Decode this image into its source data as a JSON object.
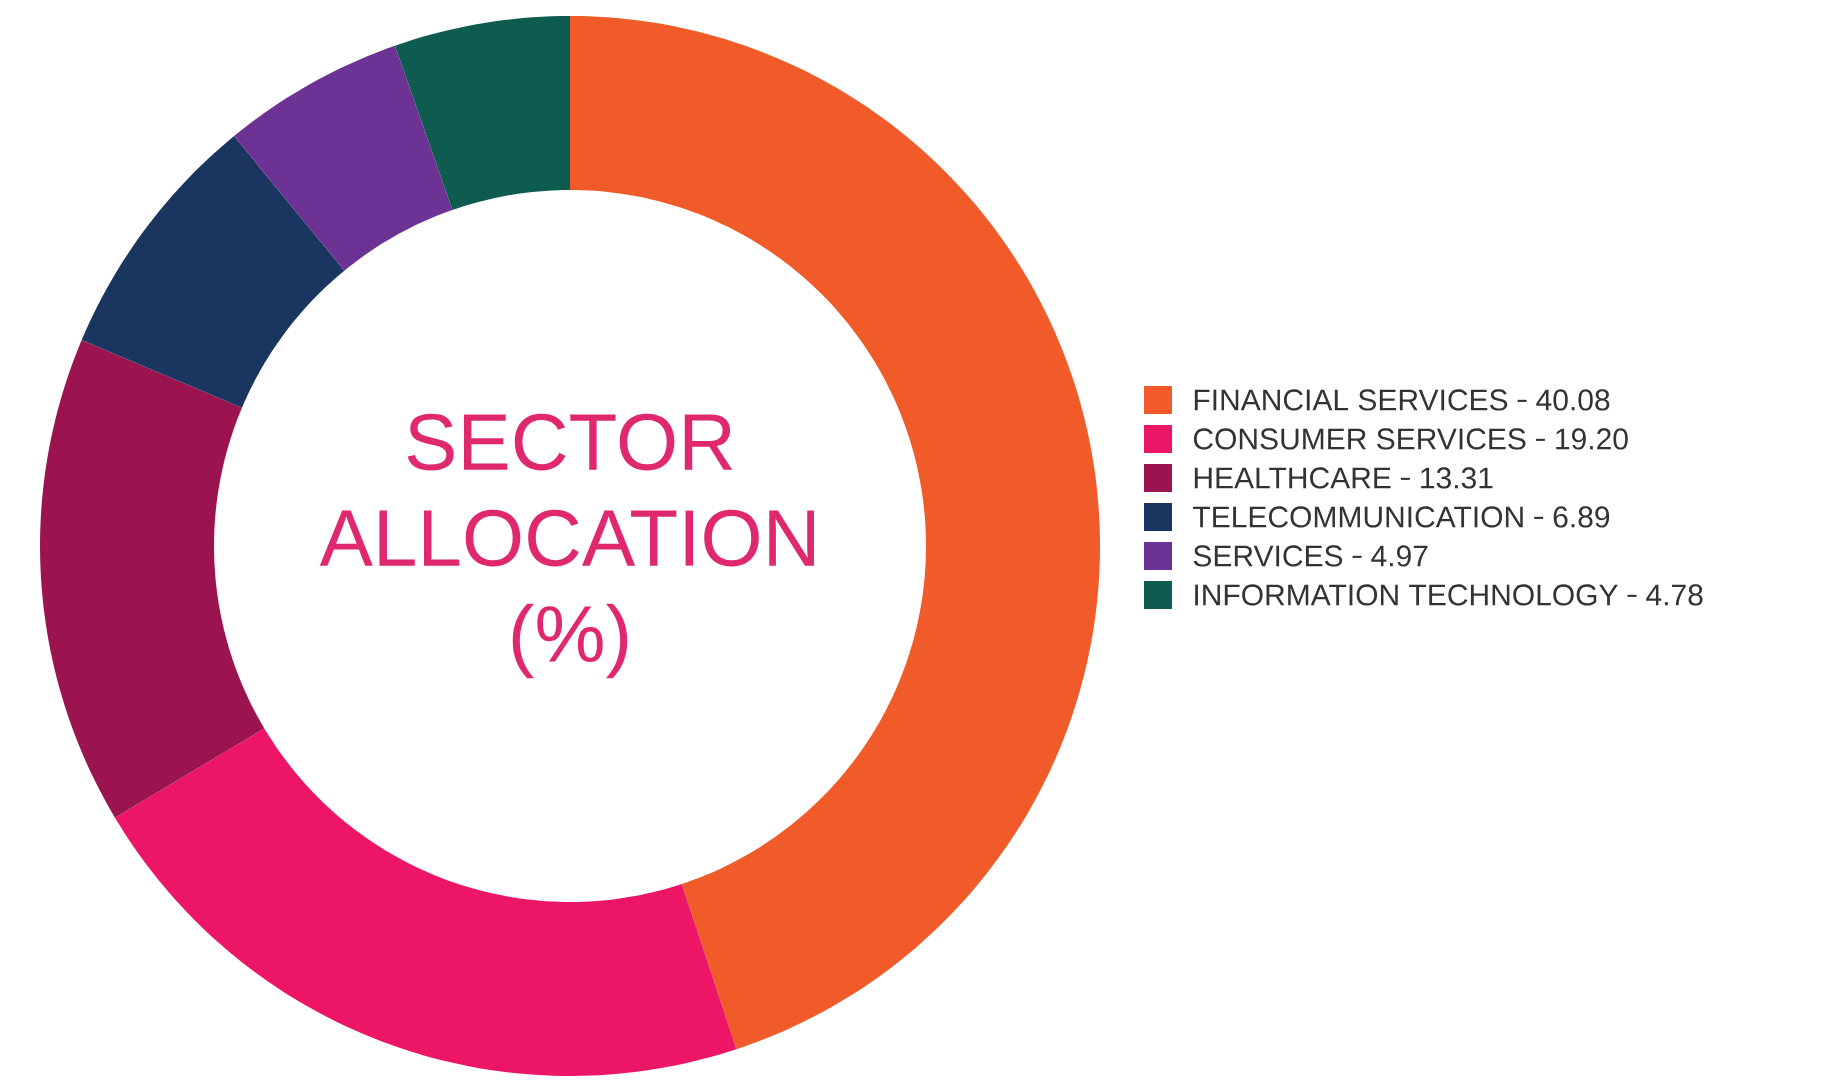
{
  "chart_data": {
    "type": "donut",
    "title": "SECTOR ALLOCATION (%)",
    "categories": [
      "FINANCIAL SERVICES",
      "CONSUMER SERVICES",
      "HEALTHCARE",
      "TELECOMMUNICATION",
      "SERVICES",
      "INFORMATION TECHNOLOGY"
    ],
    "values": [
      40.08,
      19.2,
      13.31,
      6.89,
      4.97,
      4.78
    ],
    "value_labels": [
      "40.08",
      "19.20",
      "13.31",
      "6.89",
      "4.97",
      "4.78"
    ],
    "colors": [
      "#f15a29",
      "#ec1566",
      "#9b1450",
      "#1a3660",
      "#6d3394",
      "#0e5c4f"
    ],
    "legend": "right"
  }
}
